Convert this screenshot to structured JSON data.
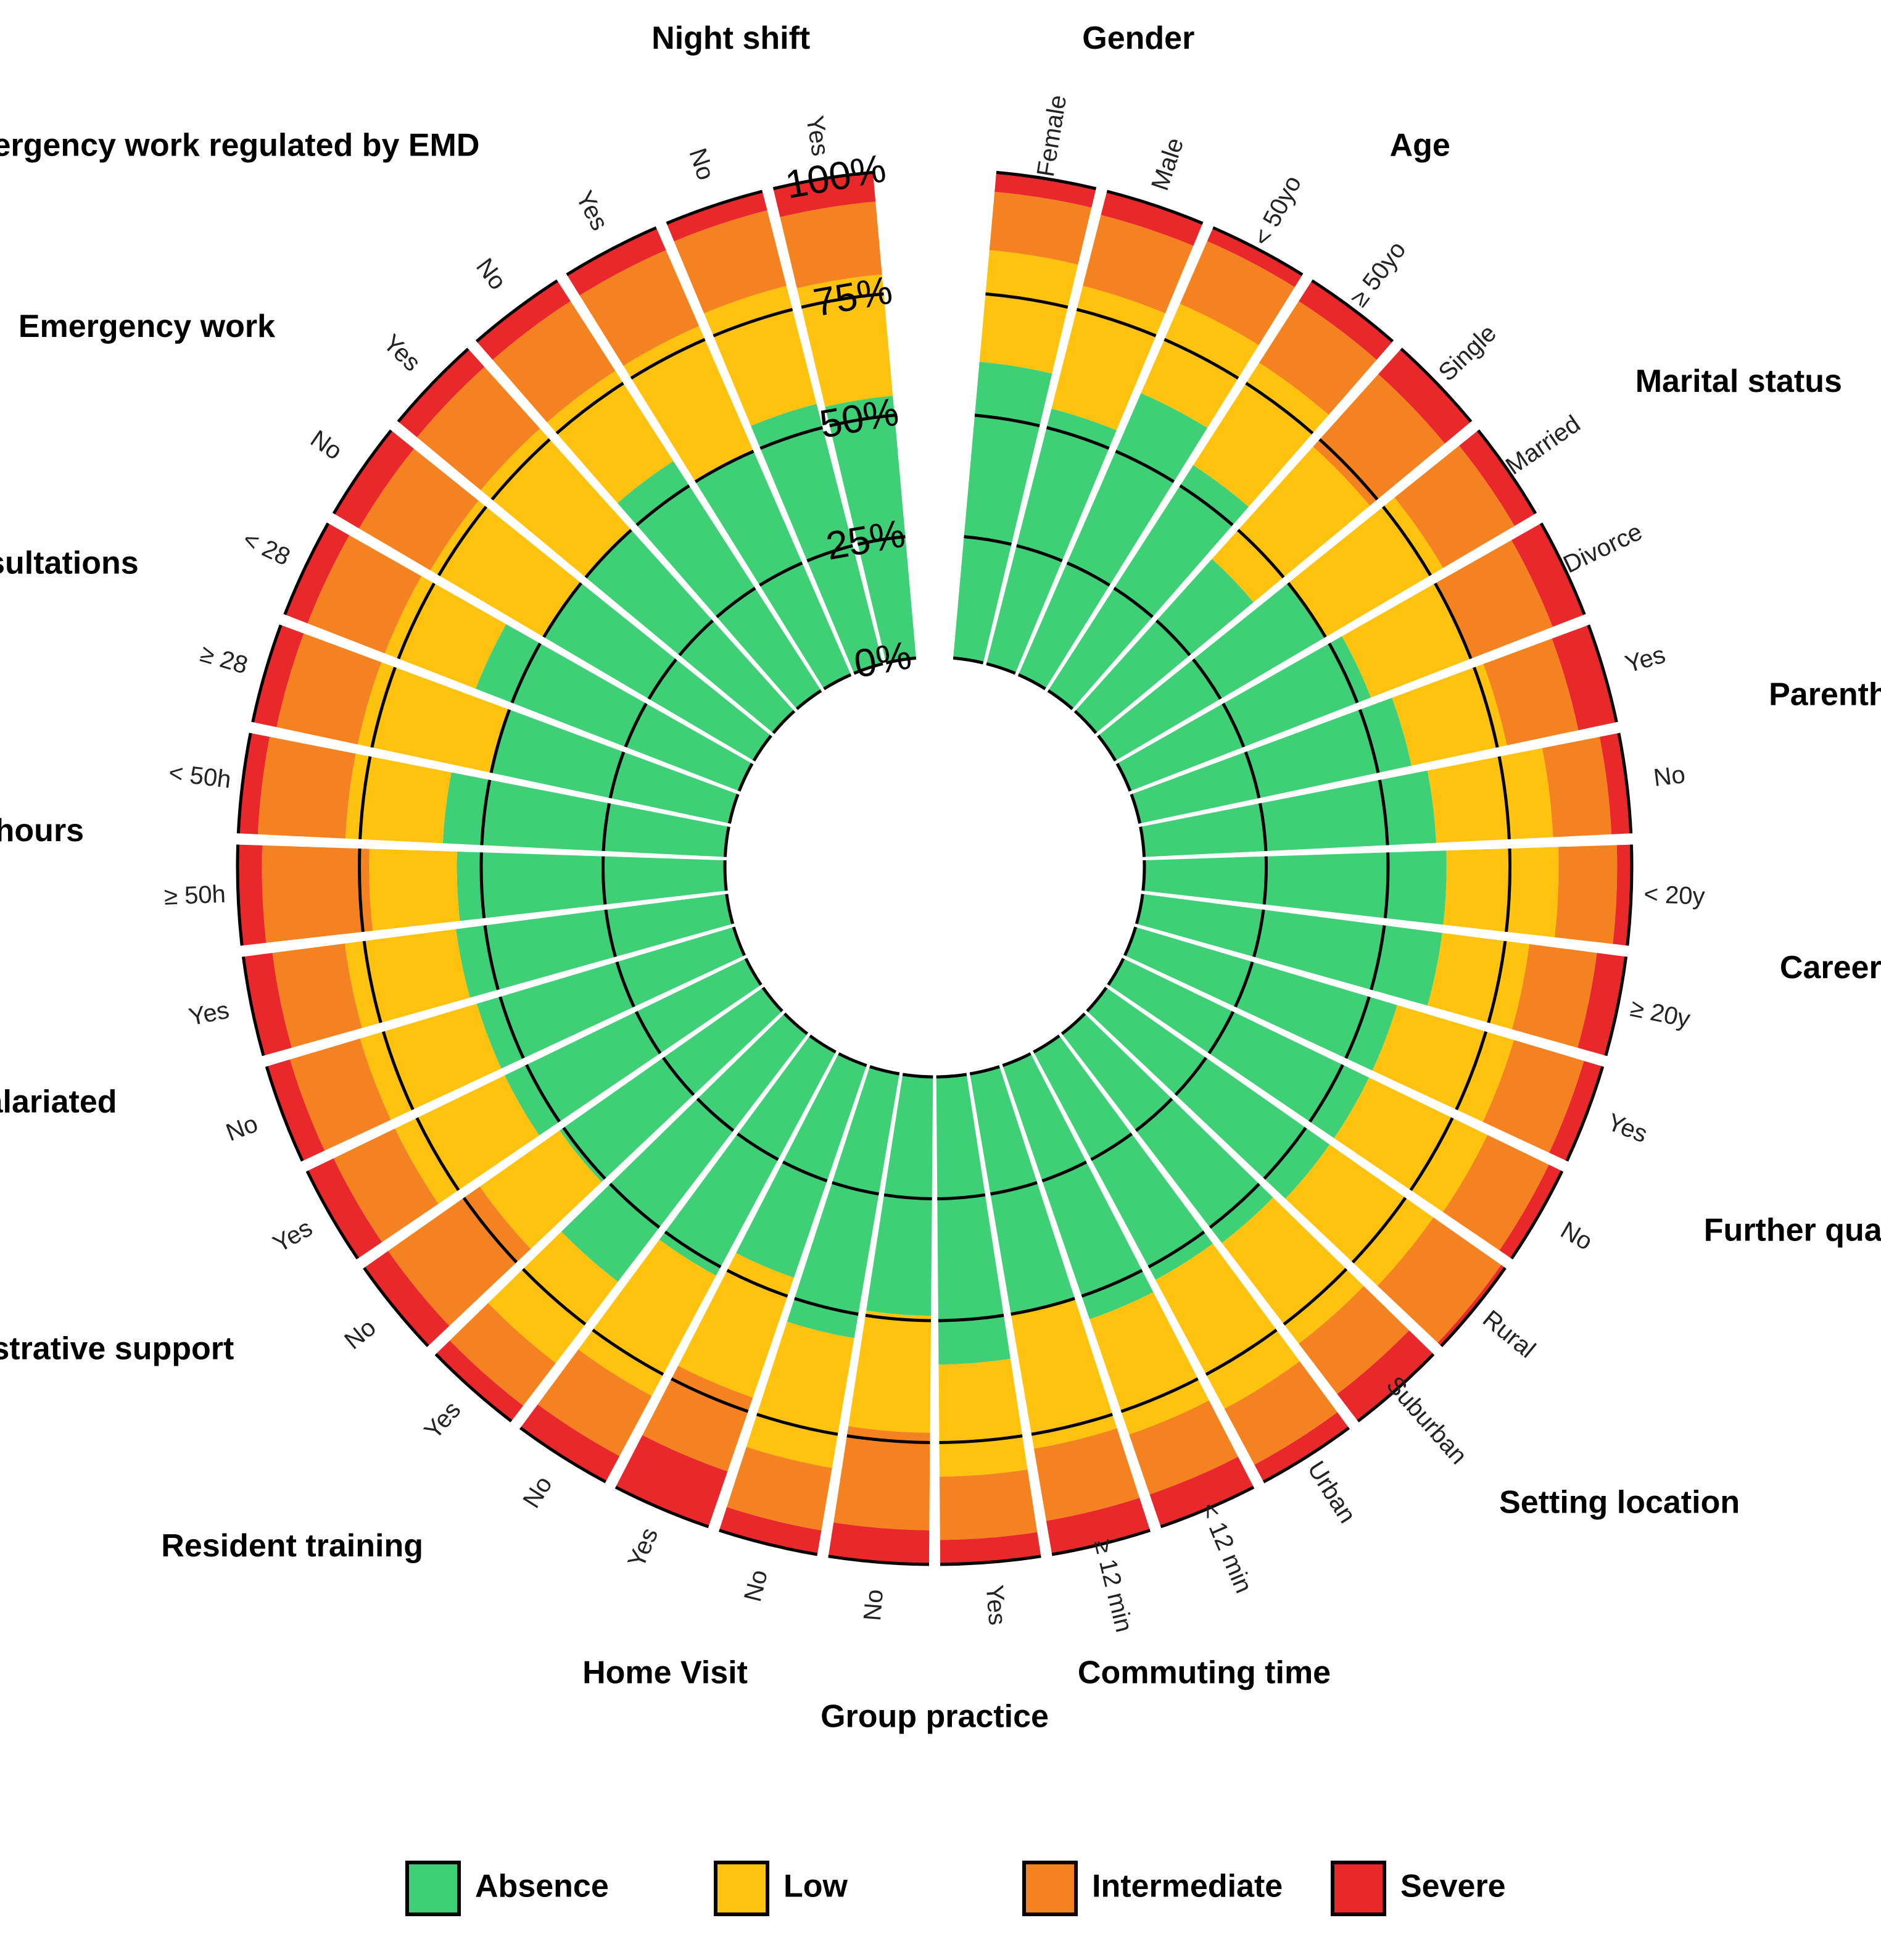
{
  "chart_data": {
    "type": "circular stacked bar",
    "y_ticks": [
      "0%",
      "25%",
      "50%",
      "75%",
      "100%"
    ],
    "series_order": [
      "Absence",
      "Low",
      "Intermediate",
      "Severe"
    ],
    "legend": {
      "position": "bottom",
      "items": [
        {
          "label": "Absence",
          "color": "#3ecf77"
        },
        {
          "label": "Low",
          "color": "#ffc20e"
        },
        {
          "label": "Intermediate",
          "color": "#f58220"
        },
        {
          "label": "Severe",
          "color": "#e8282b"
        }
      ]
    },
    "groups": [
      {
        "name": "Gender",
        "bars": [
          {
            "label": "Female",
            "values": [
              61,
              23,
              12,
              4
            ]
          },
          {
            "label": "Male",
            "values": [
              54,
              26,
              15,
              5
            ]
          }
        ]
      },
      {
        "name": "Age",
        "bars": [
          {
            "label": "< 50yo",
            "values": [
              63,
              20,
              14,
              3
            ]
          },
          {
            "label": "≥ 50yo",
            "values": [
              55,
              25,
              15,
              5
            ]
          }
        ]
      },
      {
        "name": "Marital status",
        "bars": [
          {
            "label": "Single",
            "values": [
              42,
              31,
              20,
              7
            ]
          },
          {
            "label": "Married",
            "values": [
              50,
              28,
              17,
              5
            ]
          },
          {
            "label": "Divorce",
            "values": [
              53,
              22,
              18,
              7
            ]
          }
        ]
      },
      {
        "name": "Parenthood",
        "bars": [
          {
            "label": "Yes",
            "values": [
              57,
              20,
              15,
              8
            ]
          },
          {
            "label": "No",
            "values": [
              60,
              24,
              12,
              4
            ]
          }
        ]
      },
      {
        "name": "Career lenght",
        "bars": [
          {
            "label": "< 20y",
            "values": [
              62,
              23,
              12,
              3
            ]
          },
          {
            "label": "≥ 20y",
            "values": [
              62,
              18,
              14,
              6
            ]
          }
        ]
      },
      {
        "name": "Further qualifications",
        "bars": [
          {
            "label": "Yes",
            "values": [
              56,
              25,
              15,
              4
            ]
          },
          {
            "label": "No",
            "values": [
              56,
              27,
              14,
              3
            ]
          }
        ]
      },
      {
        "name": "Setting location",
        "bars": [
          {
            "label": "Rural",
            "values": [
              56,
              26,
              17,
              1
            ]
          },
          {
            "label": "Suburban",
            "values": [
              54,
              26,
              13,
              7
            ]
          },
          {
            "label": "Urban",
            "values": [
              53,
              30,
              13,
              4
            ]
          }
        ]
      },
      {
        "name": "Commuting time",
        "bars": [
          {
            "label": "< 12 min",
            "values": [
              55,
              25,
              13,
              7
            ]
          },
          {
            "label": "≥ 12 min",
            "values": [
              50,
              28,
              15,
              7
            ]
          }
        ]
      },
      {
        "name": "Group practice",
        "bars": [
          {
            "label": "Yes",
            "values": [
              59,
              23,
              13,
              5
            ]
          },
          {
            "label": "No",
            "values": [
              49,
              24,
              20,
              7
            ]
          }
        ]
      },
      {
        "name": "Home Visit",
        "bars": [
          {
            "label": "No",
            "values": [
              55,
              27,
              13,
              5
            ]
          },
          {
            "label": "Yes",
            "values": [
              46,
              26,
              16,
              12
            ]
          }
        ]
      },
      {
        "name": "Resident training",
        "bars": [
          {
            "label": "No",
            "values": [
              52,
              28,
              14,
              6
            ]
          },
          {
            "label": "Yes",
            "values": [
              64,
              21,
              11,
              4
            ]
          }
        ]
      },
      {
        "name": "Administrative support",
        "bars": [
          {
            "label": "No",
            "values": [
              51,
              20,
              23,
              6
            ]
          },
          {
            "label": "Yes",
            "values": [
              55,
              25,
              14,
              6
            ]
          }
        ]
      },
      {
        "name": "Partly salariated",
        "bars": [
          {
            "label": "No",
            "values": [
              55,
              25,
              15,
              5
            ]
          },
          {
            "label": "Yes",
            "values": [
              56,
              23,
              15,
              6
            ]
          }
        ]
      },
      {
        "name": "Weekly hours",
        "bars": [
          {
            "label": "≥ 50h",
            "values": [
              55,
              18,
              22,
              5
            ]
          },
          {
            "label": "< 50h",
            "values": [
              58,
              20,
              18,
              4
            ]
          }
        ]
      },
      {
        "name": "Daily consultations",
        "bars": [
          {
            "label": "≥ 28",
            "values": [
              50,
              28,
              17,
              5
            ]
          },
          {
            "label": "< 28",
            "values": [
              58,
              20,
              17,
              5
            ]
          }
        ]
      },
      {
        "name": "Emergency work",
        "bars": [
          {
            "label": "No",
            "values": [
              50,
              27,
              17,
              6
            ]
          },
          {
            "label": "Yes",
            "values": [
              50,
              28,
              17,
              5
            ]
          }
        ]
      },
      {
        "name": "Emergency work regulated by EMD",
        "bars": [
          {
            "label": "No",
            "values": [
              56,
              22,
              17,
              5
            ]
          },
          {
            "label": "Yes",
            "values": [
              50,
              28,
              17,
              5
            ]
          }
        ]
      },
      {
        "name": "Night shift",
        "bars": [
          {
            "label": "No",
            "values": [
              55,
              25,
              16,
              4
            ]
          },
          {
            "label": "Yes",
            "values": [
              54,
              25,
              15,
              6
            ]
          }
        ]
      }
    ]
  }
}
